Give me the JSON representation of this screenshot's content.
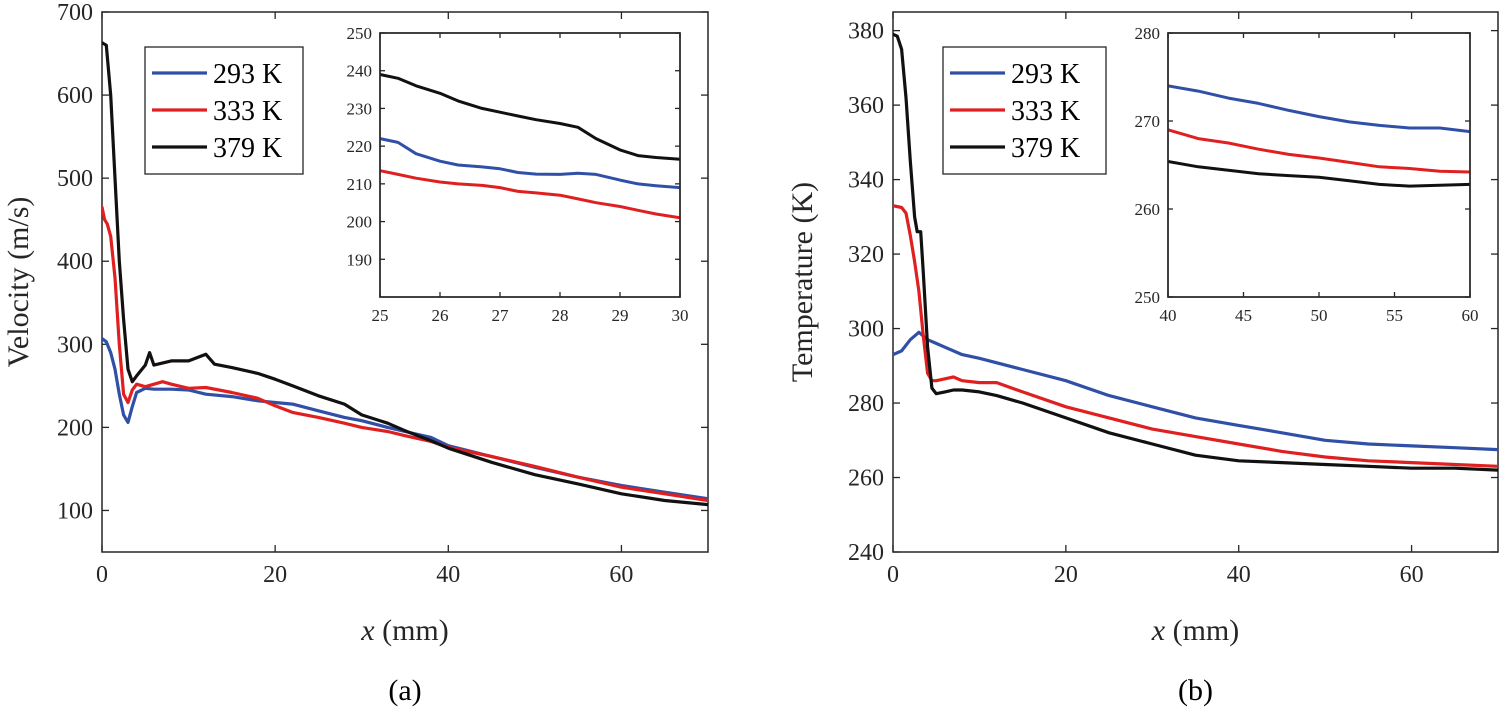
{
  "chart_data": [
    {
      "type": "line",
      "panel_label": "(a)",
      "xlabel_var": "x",
      "xlabel_unit": " (mm)",
      "ylabel": "Velocity (m/s)",
      "xlim": [
        0,
        70
      ],
      "ylim": [
        50,
        700
      ],
      "xticks": [
        0,
        20,
        40,
        60
      ],
      "yticks": [
        100,
        200,
        300,
        400,
        500,
        600,
        700
      ],
      "legend_position": "top-left",
      "series": [
        {
          "name": "293 K",
          "color": "#3050a8",
          "x": [
            0,
            0.5,
            1,
            1.5,
            2,
            2.5,
            3,
            3.5,
            4,
            5,
            6,
            8,
            10,
            12,
            15,
            18,
            20,
            22,
            25,
            28,
            30,
            33,
            35,
            38,
            40,
            45,
            50,
            55,
            60,
            65,
            70
          ],
          "y": [
            307,
            303,
            290,
            270,
            240,
            215,
            206,
            225,
            242,
            247,
            246,
            246,
            245,
            240,
            237,
            232,
            230,
            228,
            220,
            212,
            208,
            200,
            195,
            188,
            178,
            165,
            152,
            140,
            130,
            122,
            114
          ]
        },
        {
          "name": "333 K",
          "color": "#e02020",
          "x": [
            0,
            0.3,
            0.6,
            1,
            1.5,
            2,
            2.5,
            3,
            3.5,
            4,
            5,
            6,
            7,
            8,
            10,
            12,
            15,
            18,
            20,
            22,
            25,
            28,
            30,
            33,
            35,
            38,
            40,
            45,
            50,
            55,
            60,
            65,
            70
          ],
          "y": [
            465,
            450,
            445,
            430,
            380,
            300,
            240,
            230,
            245,
            252,
            249,
            252,
            255,
            252,
            247,
            248,
            242,
            235,
            226,
            218,
            212,
            205,
            200,
            195,
            190,
            183,
            176,
            165,
            153,
            140,
            128,
            120,
            112
          ]
        },
        {
          "name": "379 K",
          "color": "#111111",
          "x": [
            0,
            0.5,
            1,
            1.5,
            2,
            2.5,
            3,
            3.5,
            4,
            5,
            5.5,
            6,
            8,
            10,
            12,
            13,
            15,
            18,
            20,
            22,
            25,
            28,
            30,
            33,
            35,
            38,
            40,
            45,
            50,
            55,
            60,
            65,
            70
          ],
          "y": [
            663,
            660,
            600,
            500,
            400,
            330,
            270,
            255,
            262,
            275,
            290,
            275,
            280,
            280,
            288,
            276,
            272,
            265,
            258,
            250,
            238,
            228,
            215,
            205,
            196,
            184,
            175,
            158,
            143,
            132,
            120,
            112,
            107
          ]
        }
      ],
      "inset": {
        "xlim": [
          25,
          30
        ],
        "ylim": [
          180,
          250
        ],
        "xticks": [
          25,
          26,
          27,
          28,
          29,
          30
        ],
        "yticks": [
          190,
          200,
          210,
          220,
          230,
          240,
          250
        ],
        "series": [
          {
            "color": "#3050a8",
            "x": [
              25,
              25.3,
              25.6,
              26,
              26.3,
              26.7,
              27,
              27.3,
              27.6,
              28,
              28.3,
              28.6,
              29,
              29.3,
              29.6,
              30
            ],
            "y": [
              222,
              221,
              218,
              216,
              215,
              214.5,
              214,
              213,
              212.6,
              212.5,
              212.8,
              212.5,
              211,
              210,
              209.5,
              209
            ]
          },
          {
            "color": "#e02020",
            "x": [
              25,
              25.3,
              25.6,
              26,
              26.3,
              26.7,
              27,
              27.3,
              27.6,
              28,
              28.3,
              28.6,
              29,
              29.3,
              29.6,
              30
            ],
            "y": [
              213.5,
              212.5,
              211.5,
              210.5,
              210,
              209.6,
              209,
              208,
              207.6,
              207,
              206,
              205,
              204,
              203,
              202,
              201
            ]
          },
          {
            "color": "#111111",
            "x": [
              25,
              25.3,
              25.6,
              26,
              26.3,
              26.7,
              27,
              27.3,
              27.6,
              28,
              28.3,
              28.6,
              29,
              29.3,
              29.6,
              30
            ],
            "y": [
              239,
              238,
              236,
              234,
              232,
              230,
              229,
              228,
              227,
              226,
              225,
              222,
              219,
              217.5,
              217,
              216.5
            ]
          }
        ]
      }
    },
    {
      "type": "line",
      "panel_label": "(b)",
      "xlabel_var": "x",
      "xlabel_unit": " (mm)",
      "ylabel": "Temperature (K)",
      "xlim": [
        0,
        70
      ],
      "ylim": [
        240,
        385
      ],
      "xticks": [
        0,
        20,
        40,
        60
      ],
      "yticks": [
        240,
        260,
        280,
        300,
        320,
        340,
        360,
        380
      ],
      "legend_position": "top-left",
      "series": [
        {
          "name": "293 K",
          "color": "#3050a8",
          "x": [
            0,
            1,
            2,
            3,
            4,
            5,
            6,
            8,
            10,
            15,
            20,
            25,
            30,
            35,
            40,
            45,
            50,
            55,
            60,
            65,
            70
          ],
          "y": [
            293,
            294,
            297,
            299,
            297,
            296,
            295,
            293,
            292,
            289,
            286,
            282,
            279,
            276,
            274,
            272,
            270,
            269,
            268.5,
            268,
            267.5
          ]
        },
        {
          "name": "333 K",
          "color": "#e02020",
          "x": [
            0,
            1,
            1.5,
            2,
            2.5,
            3,
            3.5,
            4,
            4.5,
            5,
            6,
            7,
            8,
            10,
            12,
            15,
            20,
            25,
            30,
            35,
            40,
            45,
            50,
            55,
            60,
            65,
            70
          ],
          "y": [
            333,
            332.5,
            331,
            325,
            318,
            310,
            298,
            288,
            286,
            286,
            286.5,
            287,
            286,
            285.5,
            285.5,
            283,
            279,
            276,
            273,
            271,
            269,
            267,
            265.5,
            264.5,
            264,
            263.5,
            263
          ]
        },
        {
          "name": "379 K",
          "color": "#111111",
          "x": [
            0,
            0.5,
            1,
            1.5,
            2,
            2.5,
            2.8,
            3.2,
            3.5,
            4,
            4.5,
            5,
            6,
            7,
            8,
            10,
            12,
            15,
            20,
            25,
            30,
            35,
            40,
            45,
            50,
            55,
            60,
            65,
            70
          ],
          "y": [
            379,
            378.5,
            375,
            362,
            345,
            330,
            326,
            326,
            315,
            295,
            284,
            282.5,
            283,
            283.5,
            283.5,
            283,
            282,
            280,
            276,
            272,
            269,
            266,
            264.5,
            264,
            263.5,
            263,
            262.5,
            262.5,
            262
          ]
        }
      ],
      "inset": {
        "xlim": [
          40,
          60
        ],
        "ylim": [
          250,
          280
        ],
        "xticks": [
          40,
          45,
          50,
          55,
          60
        ],
        "yticks": [
          250,
          260,
          270,
          280
        ],
        "series": [
          {
            "color": "#3050a8",
            "x": [
              40,
              42,
              44,
              46,
              48,
              50,
              52,
              54,
              56,
              58,
              60
            ],
            "y": [
              274,
              273.4,
              272.6,
              272,
              271.2,
              270.5,
              269.9,
              269.5,
              269.2,
              269.2,
              268.8
            ]
          },
          {
            "color": "#e02020",
            "x": [
              40,
              42,
              44,
              46,
              48,
              50,
              52,
              54,
              56,
              58,
              60
            ],
            "y": [
              269,
              268,
              267.5,
              266.8,
              266.2,
              265.8,
              265.3,
              264.8,
              264.6,
              264.3,
              264.2
            ]
          },
          {
            "color": "#111111",
            "x": [
              40,
              42,
              44,
              46,
              48,
              50,
              52,
              54,
              56,
              58,
              60
            ],
            "y": [
              265.4,
              264.8,
              264.4,
              264,
              263.8,
              263.6,
              263.2,
              262.8,
              262.6,
              262.7,
              262.8
            ]
          }
        ]
      }
    }
  ]
}
